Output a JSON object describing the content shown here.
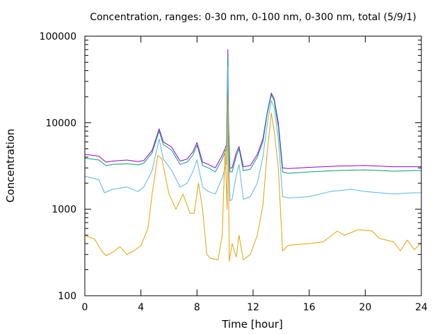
{
  "chart_data": {
    "type": "line",
    "title": "Concentration, ranges: 0-30 nm, 0-100 nm, 0-300 nm, total (5/9/1)",
    "xlabel": "Time [hour]",
    "ylabel": "Concentration",
    "xlim": [
      0,
      24
    ],
    "ylim": [
      100,
      100000
    ],
    "yscale": "log",
    "grid": false,
    "xticks": [
      0,
      4,
      8,
      12,
      16,
      20,
      24
    ],
    "xtick_labels": [
      "0",
      "4",
      "8",
      "12",
      "16",
      "20",
      "24"
    ],
    "yticks": [
      100,
      1000,
      10000,
      100000
    ],
    "ytick_labels": [
      "100",
      "1000",
      "10000",
      "100000"
    ],
    "series": [
      {
        "color": "#9400d3",
        "x": [
          0,
          1,
          1.5,
          2,
          3,
          3.8,
          4.2,
          4.8,
          5.3,
          5.6,
          6.2,
          6.8,
          7.3,
          7.7,
          8.0,
          8.4,
          8.8,
          9.3,
          9.8,
          10.1,
          10.2,
          10.25,
          10.35,
          10.5,
          10.8,
          11.0,
          11.3,
          11.8,
          12.3,
          12.7,
          13.0,
          13.3,
          13.5,
          13.8,
          14.1,
          14.5,
          16,
          18,
          20,
          22,
          23.5,
          24
        ],
        "y": [
          4300,
          4100,
          3500,
          3600,
          3700,
          3550,
          3650,
          4800,
          8500,
          6000,
          5200,
          3600,
          3800,
          4600,
          5900,
          3500,
          3300,
          3000,
          4200,
          5500,
          70000,
          10000,
          3000,
          3000,
          4500,
          5300,
          3100,
          3200,
          4300,
          6500,
          13000,
          22000,
          19000,
          10000,
          3000,
          2950,
          3050,
          3150,
          3200,
          3100,
          3100,
          3100
        ]
      },
      {
        "color": "#009e73",
        "x": [
          0,
          1,
          1.5,
          2,
          3,
          3.8,
          4.2,
          4.8,
          5.3,
          5.6,
          6.2,
          6.8,
          7.3,
          7.7,
          8.0,
          8.4,
          8.8,
          9.3,
          9.8,
          10.1,
          10.2,
          10.25,
          10.35,
          10.5,
          10.8,
          11.0,
          11.3,
          11.8,
          12.3,
          12.7,
          13.0,
          13.3,
          13.5,
          13.8,
          14.1,
          14.5,
          16,
          18,
          20,
          22,
          23.5,
          24
        ],
        "y": [
          3900,
          3700,
          3200,
          3300,
          3350,
          3250,
          3400,
          4500,
          8000,
          5600,
          4800,
          3300,
          3500,
          4200,
          5500,
          3200,
          3000,
          2700,
          3800,
          5000,
          60000,
          9000,
          2700,
          2700,
          4100,
          5000,
          2800,
          2900,
          4000,
          6000,
          12500,
          21000,
          18000,
          9000,
          2700,
          2600,
          2700,
          2800,
          2850,
          2750,
          2800,
          2800
        ]
      },
      {
        "color": "#56b4e9",
        "x": [
          0,
          1,
          1.4,
          2,
          3,
          3.8,
          4.2,
          4.8,
          5.3,
          5.6,
          6.2,
          6.8,
          7.3,
          7.7,
          8.0,
          8.4,
          8.8,
          9.3,
          9.8,
          10.1,
          10.2,
          10.25,
          10.35,
          10.5,
          10.8,
          11.0,
          11.3,
          11.8,
          12.3,
          12.7,
          13.0,
          13.3,
          13.5,
          13.8,
          14.1,
          14.5,
          16,
          17.5,
          19,
          20,
          22,
          23.5,
          24
        ],
        "y": [
          2400,
          2200,
          1550,
          1700,
          1800,
          1600,
          1800,
          2800,
          6500,
          3800,
          2800,
          1800,
          2000,
          2700,
          3700,
          1800,
          1600,
          1500,
          2300,
          3400,
          45000,
          6000,
          1250,
          1300,
          2500,
          3300,
          1300,
          1400,
          2000,
          4000,
          9500,
          18000,
          15000,
          6500,
          1400,
          1350,
          1400,
          1600,
          1700,
          1600,
          1500,
          1550,
          1550
        ]
      },
      {
        "color": "#e69f00",
        "x": [
          0,
          0.7,
          1.2,
          1.5,
          2,
          2.5,
          3,
          3.5,
          4,
          4.5,
          4.8,
          5.2,
          5.5,
          6,
          6.5,
          7,
          7.5,
          7.8,
          8.1,
          8.4,
          8.7,
          9,
          9.5,
          9.8,
          10.0,
          10.15,
          10.2,
          10.3,
          10.5,
          10.8,
          11.0,
          11.3,
          11.8,
          12.3,
          12.7,
          13.0,
          13.3,
          13.5,
          13.8,
          14.1,
          14.5,
          15,
          16,
          17,
          18,
          18.5,
          19.5,
          20.5,
          21,
          22,
          22.5,
          23,
          23.5,
          24
        ],
        "y": [
          500,
          450,
          330,
          290,
          320,
          370,
          300,
          330,
          380,
          600,
          1500,
          4200,
          3800,
          1500,
          1000,
          1500,
          900,
          900,
          2000,
          1000,
          300,
          270,
          260,
          500,
          5000,
          1000,
          20000,
          250,
          400,
          280,
          500,
          260,
          300,
          500,
          1100,
          4500,
          13000,
          8000,
          3000,
          330,
          380,
          390,
          400,
          420,
          560,
          500,
          580,
          560,
          460,
          420,
          330,
          440,
          340,
          410
        ]
      }
    ]
  }
}
